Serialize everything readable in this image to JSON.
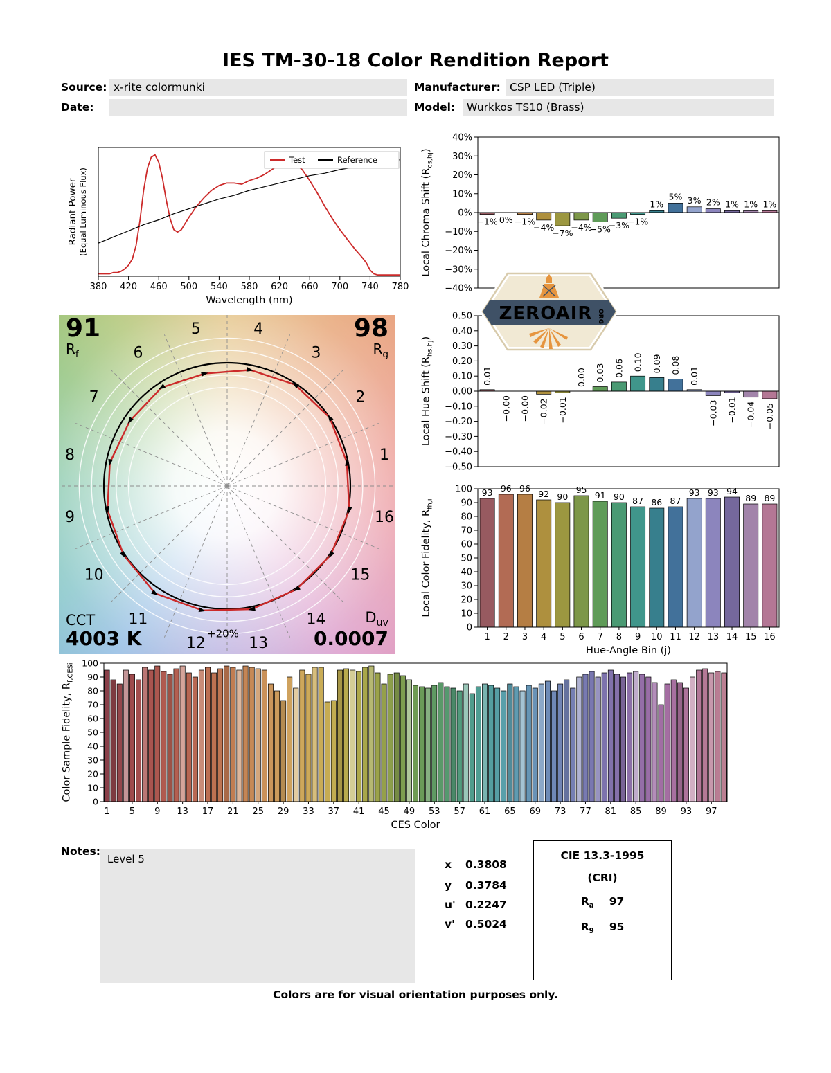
{
  "title": "IES TM-30-18 Color Rendition Report",
  "header": {
    "source": {
      "label": "Source:",
      "value": "x-rite colormunki"
    },
    "manufacturer": {
      "label": "Manufacturer:",
      "value": "CSP LED (Triple)"
    },
    "date": {
      "label": "Date:",
      "value": ""
    },
    "model": {
      "label": "Model:",
      "value": "Wurkkos TS10 (Brass)"
    }
  },
  "logo": {
    "text": "ZEROAIR",
    "suffix": "ORG"
  },
  "cvg": {
    "rf": "91",
    "rf_label": "R",
    "rf_sub": "f",
    "rg": "98",
    "rg_label": "R",
    "rg_sub": "g",
    "cct_label": "CCT",
    "cct_value": "4003 K",
    "duv_label": "D",
    "duv_sub": "uv",
    "duv_value": "0.0007",
    "plus20_label": "+20%",
    "bin_labels": [
      "1",
      "2",
      "3",
      "4",
      "5",
      "6",
      "7",
      "8",
      "9",
      "10",
      "11",
      "12",
      "13",
      "14",
      "15",
      "16"
    ],
    "test_radii": [
      0.99,
      1.0,
      0.99,
      0.96,
      0.93,
      0.96,
      0.95,
      0.97,
      0.99,
      1.01,
      1.05,
      1.03,
      1.02,
      1.01,
      1.01,
      1.01
    ],
    "ref_color": "#000000",
    "test_color": "#cc2a2a"
  },
  "hue_bin_colors": [
    "#975a60",
    "#b26b54",
    "#b57e44",
    "#ae903e",
    "#9c9740",
    "#7d9749",
    "#5f9b58",
    "#4a9a73",
    "#40968b",
    "#377f8d",
    "#42719a",
    "#93a3cc",
    "#8c85bd",
    "#75689c",
    "#a284aa",
    "#b47795"
  ],
  "ces_palette": [
    [
      0,
      "#8a4049"
    ],
    [
      0.05,
      "#a34e4e"
    ],
    [
      0.1,
      "#b25c50"
    ],
    [
      0.15,
      "#ba6a52"
    ],
    [
      0.2,
      "#c07b52"
    ],
    [
      0.25,
      "#c98f58"
    ],
    [
      0.3,
      "#cfa45e"
    ],
    [
      0.35,
      "#c9ad55"
    ],
    [
      0.4,
      "#b3a94a"
    ],
    [
      0.45,
      "#94a04a"
    ],
    [
      0.5,
      "#6f9b52"
    ],
    [
      0.55,
      "#55996e"
    ],
    [
      0.6,
      "#4f9d92"
    ],
    [
      0.65,
      "#5a9fae"
    ],
    [
      0.7,
      "#6b90b8"
    ],
    [
      0.75,
      "#7480b4"
    ],
    [
      0.8,
      "#7b74ae"
    ],
    [
      0.85,
      "#8d6fa8"
    ],
    [
      0.9,
      "#a26da4"
    ],
    [
      0.95,
      "#b07598"
    ],
    [
      1,
      "#bb7f92"
    ]
  ],
  "chart_data": [
    {
      "id": "spd",
      "type": "line",
      "xlabel": "Wavelength (nm)",
      "ylabel_line1": "Radiant Power",
      "ylabel_line2": "(Equal Luminous Flux)",
      "xlim": [
        380,
        780
      ],
      "ylim": [
        0,
        1.05
      ],
      "x_ticks": [
        380,
        420,
        460,
        500,
        540,
        580,
        620,
        660,
        700,
        740,
        780
      ],
      "legend": [
        {
          "label": "Test",
          "color": "#cc2a2a"
        },
        {
          "label": "Reference",
          "color": "#000000"
        }
      ],
      "series": [
        {
          "name": "Test",
          "color": "#cc2a2a",
          "width": 1.8,
          "x": [
            380,
            385,
            390,
            395,
            400,
            405,
            410,
            415,
            420,
            425,
            430,
            435,
            440,
            445,
            450,
            455,
            460,
            465,
            470,
            475,
            480,
            485,
            490,
            495,
            500,
            510,
            520,
            530,
            540,
            550,
            560,
            570,
            580,
            590,
            600,
            610,
            620,
            625,
            630,
            635,
            640,
            650,
            660,
            670,
            680,
            690,
            700,
            710,
            720,
            730,
            735,
            740,
            745,
            750,
            760,
            770,
            780
          ],
          "y": [
            0.02,
            0.02,
            0.02,
            0.02,
            0.03,
            0.03,
            0.04,
            0.06,
            0.09,
            0.14,
            0.25,
            0.45,
            0.7,
            0.88,
            0.97,
            0.99,
            0.93,
            0.8,
            0.62,
            0.47,
            0.38,
            0.36,
            0.38,
            0.43,
            0.48,
            0.57,
            0.64,
            0.7,
            0.74,
            0.76,
            0.76,
            0.75,
            0.78,
            0.8,
            0.83,
            0.87,
            0.91,
            0.92,
            0.93,
            0.93,
            0.92,
            0.87,
            0.78,
            0.68,
            0.57,
            0.47,
            0.38,
            0.3,
            0.22,
            0.15,
            0.11,
            0.05,
            0.02,
            0.01,
            0.01,
            0.01,
            0.01
          ]
        },
        {
          "name": "Reference",
          "color": "#000000",
          "width": 1.2,
          "x": [
            380,
            400,
            420,
            440,
            460,
            480,
            500,
            520,
            540,
            560,
            580,
            600,
            620,
            640,
            660,
            680,
            700,
            720,
            740,
            760,
            780
          ],
          "y": [
            0.27,
            0.32,
            0.37,
            0.42,
            0.46,
            0.51,
            0.55,
            0.59,
            0.63,
            0.66,
            0.7,
            0.73,
            0.76,
            0.79,
            0.82,
            0.84,
            0.87,
            0.89,
            0.91,
            0.93,
            0.95
          ]
        }
      ]
    },
    {
      "id": "chroma_shift",
      "type": "bar",
      "ylabel": {
        "pre": "Local Chroma Shift (R",
        "sub": "cs,hj",
        "post": ")"
      },
      "categories": [
        1,
        2,
        3,
        4,
        5,
        6,
        7,
        8,
        9,
        10,
        11,
        12,
        13,
        14,
        15,
        16
      ],
      "values": [
        -1,
        -0.0,
        -1,
        -4,
        -7,
        -4,
        -5,
        -3,
        -1,
        1,
        5,
        3,
        2,
        1,
        1,
        1
      ],
      "labels": [
        "−1%",
        "0%",
        "−1%",
        "−4%",
        "−7%",
        "−4%",
        "−5%",
        "−3%",
        "−1%",
        "1%",
        "5%",
        "3%",
        "2%",
        "1%",
        "1%",
        "1%"
      ],
      "ylim": [
        -40,
        40
      ],
      "ytick_values": [
        40,
        30,
        20,
        10,
        0,
        -10,
        -20,
        -30,
        -40
      ],
      "ytick_labels": [
        "40%",
        "30%",
        "20%",
        "10%",
        "0%",
        "−10%",
        "−20%",
        "−30%",
        "−40%"
      ]
    },
    {
      "id": "hue_shift",
      "type": "bar",
      "ylabel": {
        "pre": "Local Hue Shift (R",
        "sub": "hs,hj",
        "post": ")"
      },
      "categories": [
        1,
        2,
        3,
        4,
        5,
        6,
        7,
        8,
        9,
        10,
        11,
        12,
        13,
        14,
        15,
        16
      ],
      "values": [
        0.01,
        -0.0,
        -0.0,
        -0.02,
        -0.01,
        0.0,
        0.03,
        0.06,
        0.1,
        0.09,
        0.08,
        0.01,
        -0.03,
        -0.01,
        -0.04,
        -0.05
      ],
      "labels": [
        "0.01",
        "−0.00",
        "−0.00",
        "−0.02",
        "−0.01",
        "0.00",
        "0.03",
        "0.06",
        "0.10",
        "0.09",
        "0.08",
        "0.01",
        "−0.03",
        "−0.01",
        "−0.04",
        "−0.05"
      ],
      "ylim": [
        -0.5,
        0.5
      ],
      "ytick_values": [
        0.5,
        0.4,
        0.3,
        0.2,
        0.1,
        0,
        -0.1,
        -0.2,
        -0.3,
        -0.4,
        -0.5
      ],
      "ytick_labels": [
        "0.50",
        "0.40",
        "0.30",
        "0.20",
        "0.10",
        "0.00",
        "−0.10",
        "−0.20",
        "−0.30",
        "−0.40",
        "−0.50"
      ]
    },
    {
      "id": "local_fidelity",
      "type": "bar",
      "xlabel": "Hue-Angle Bin (j)",
      "ylabel": {
        "pre": "Local Color Fidelity, R",
        "sub": "fh,i",
        "post": ""
      },
      "categories": [
        1,
        2,
        3,
        4,
        5,
        6,
        7,
        8,
        9,
        10,
        11,
        12,
        13,
        14,
        15,
        16
      ],
      "values": [
        93,
        96,
        96,
        92,
        90,
        95,
        91,
        90,
        87,
        86,
        87,
        93,
        93,
        94,
        89,
        89
      ],
      "labels": [
        "93",
        "96",
        "96",
        "92",
        "90",
        "95",
        "91",
        "90",
        "87",
        "86",
        "87",
        "93",
        "93",
        "94",
        "89",
        "89"
      ],
      "ylim": [
        0,
        100
      ],
      "ytick_values": [
        100,
        90,
        80,
        70,
        60,
        50,
        40,
        30,
        20,
        10,
        0
      ],
      "ytick_labels": [
        "100",
        "90",
        "80",
        "70",
        "60",
        "50",
        "40",
        "30",
        "20",
        "10",
        "0"
      ]
    },
    {
      "id": "ces_fidelity",
      "type": "bar",
      "xlabel": "CES Color",
      "ylabel": {
        "pre": "Color Sample Fidelity, R",
        "sub": "f,CESi",
        "post": ""
      },
      "x_ticks": [
        1,
        5,
        9,
        13,
        17,
        21,
        25,
        29,
        33,
        37,
        41,
        45,
        49,
        53,
        57,
        61,
        65,
        69,
        73,
        77,
        81,
        85,
        89,
        93,
        97
      ],
      "values": [
        95,
        88,
        85,
        95,
        92,
        88,
        97,
        95,
        98,
        94,
        92,
        96,
        98,
        93,
        90,
        95,
        97,
        93,
        96,
        98,
        97,
        95,
        98,
        97,
        96,
        95,
        85,
        80,
        73,
        90,
        82,
        95,
        92,
        97,
        97,
        72,
        73,
        95,
        96,
        95,
        94,
        97,
        98,
        93,
        85,
        92,
        93,
        91,
        88,
        84,
        83,
        82,
        84,
        86,
        83,
        82,
        80,
        85,
        78,
        83,
        85,
        84,
        82,
        80,
        85,
        83,
        80,
        84,
        82,
        85,
        87,
        80,
        85,
        88,
        82,
        90,
        92,
        94,
        90,
        93,
        95,
        92,
        90,
        93,
        94,
        92,
        90,
        86,
        70,
        85,
        88,
        86,
        82,
        90,
        95,
        96,
        93,
        94,
        93
      ],
      "ylim": [
        0,
        100
      ],
      "ytick_values": [
        100,
        90,
        80,
        70,
        60,
        50,
        40,
        30,
        20,
        10,
        0
      ],
      "ytick_labels": [
        "100",
        "90",
        "80",
        "70",
        "60",
        "50",
        "40",
        "30",
        "20",
        "10",
        "0"
      ]
    }
  ],
  "notes": {
    "label": "Notes:",
    "value": "Level 5"
  },
  "chromaticity": {
    "rows": [
      {
        "label": "x",
        "value": "0.3808"
      },
      {
        "label": "y",
        "value": "0.3784"
      },
      {
        "label": "u'",
        "value": "0.2247"
      },
      {
        "label": "v'",
        "value": "0.5024"
      }
    ]
  },
  "cie": {
    "title": "CIE 13.3-1995",
    "subtitle": "(CRI)",
    "rows": [
      {
        "pre": "R",
        "sub": "a",
        "value": "97"
      },
      {
        "pre": "R",
        "sub": "9",
        "value": "95"
      }
    ]
  },
  "footer": "Colors are for visual orientation purposes only."
}
